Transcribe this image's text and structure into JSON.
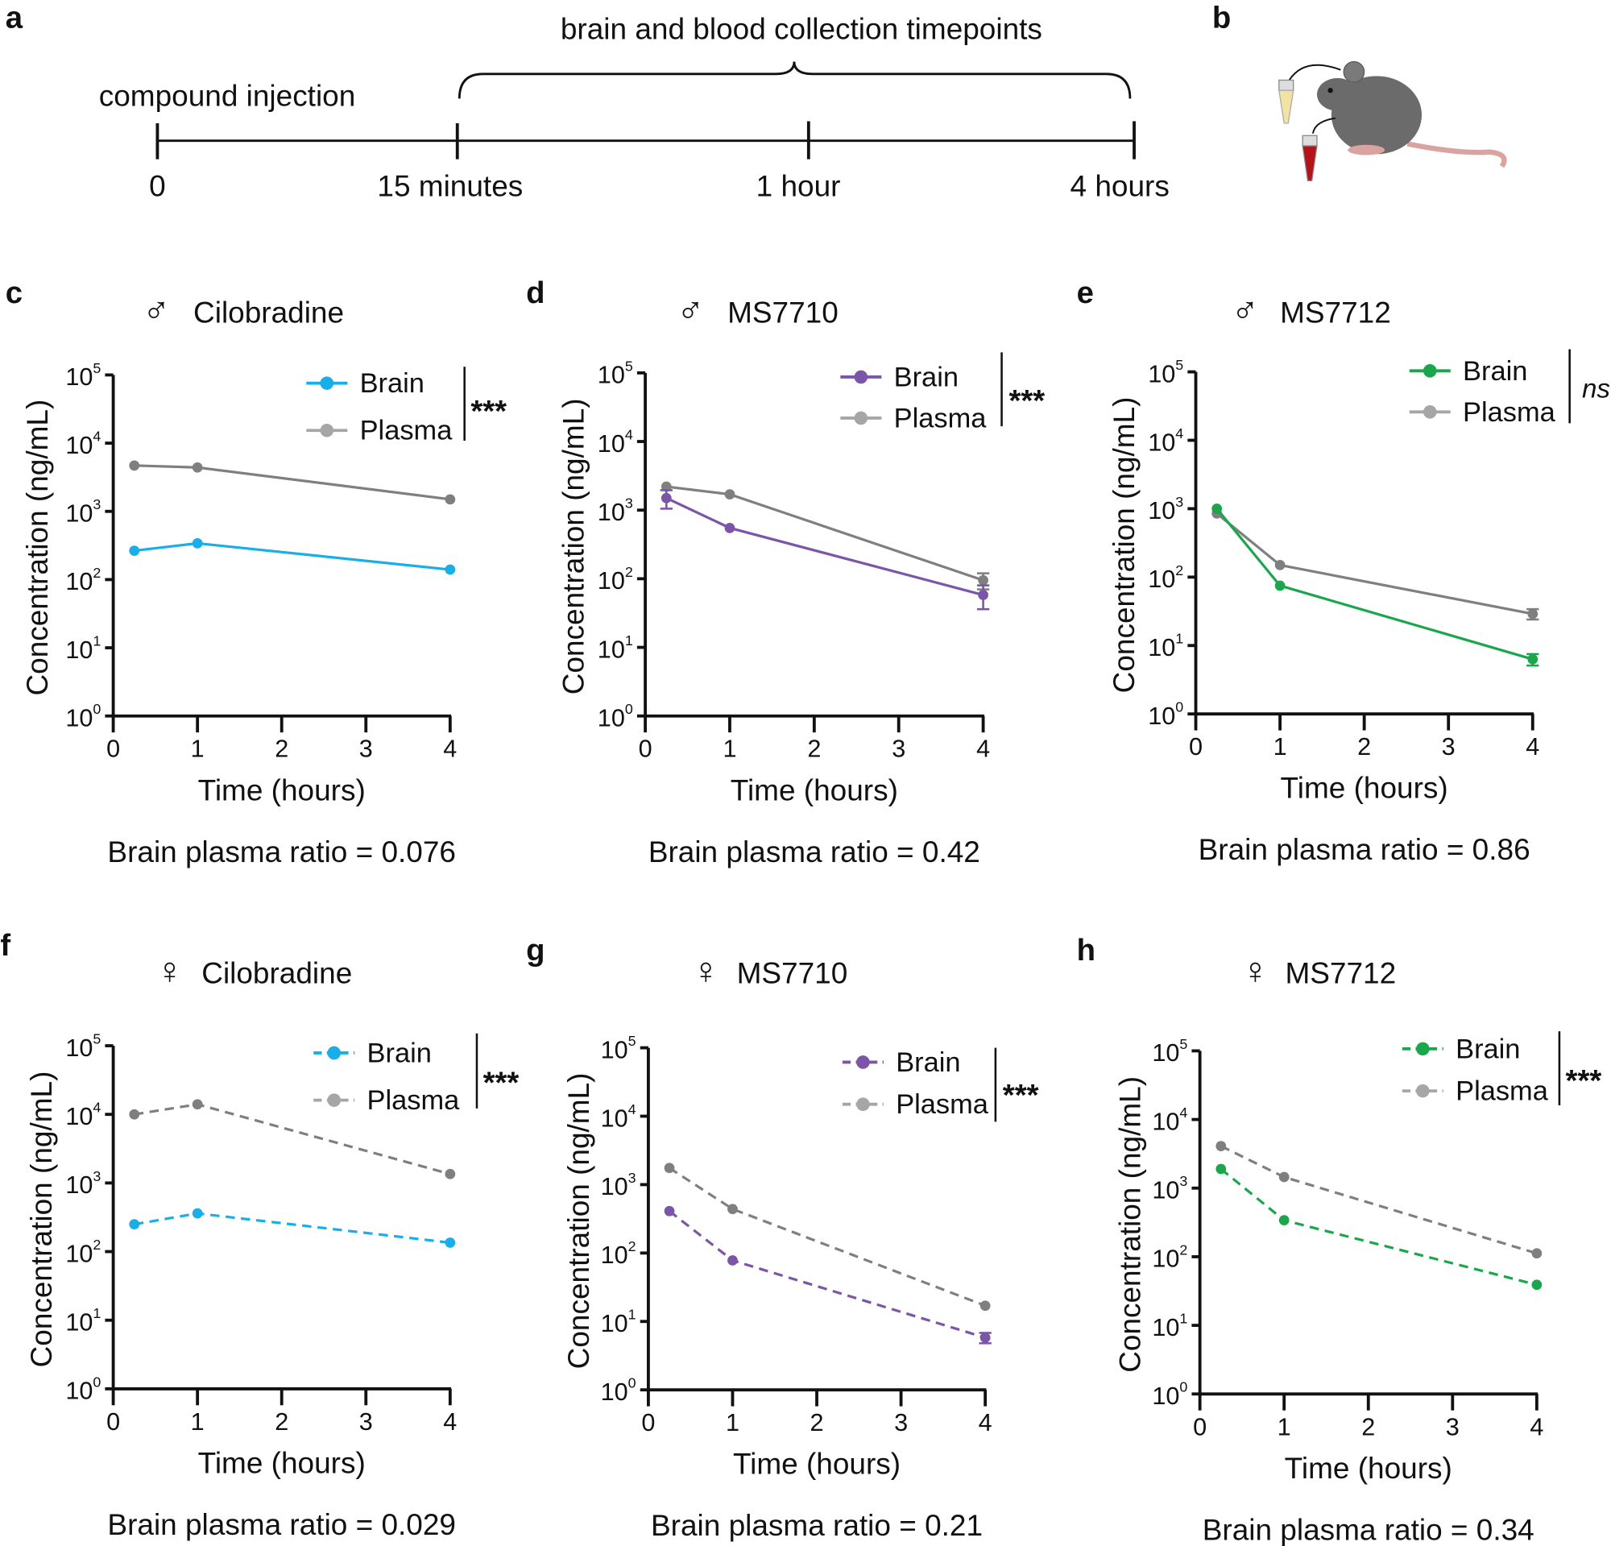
{
  "panel_a": {
    "label": "a",
    "title": "brain and blood collection timepoints",
    "injection_label": "compound injection",
    "timepoints": [
      "0",
      "15 minutes",
      "1 hour",
      "4 hours"
    ]
  },
  "panel_b": {
    "label": "b",
    "illustration": "mouse-with-brain-and-blood-tubes"
  },
  "colors": {
    "cilobradine": "#1aaee8",
    "ms7710": "#7b55a8",
    "ms7712": "#1ba64b",
    "plasma_line": "#7f7f7f",
    "plasma_legend": "#a6a6a6"
  },
  "chart_data": [
    {
      "panel": "c",
      "type": "line",
      "sex": "♂",
      "title": "Cilobradine",
      "color_key": "cilobradine",
      "dashed": false,
      "xlabel": "Time (hours)",
      "ylabel": "Concentration (ng/mL)",
      "xlim": [
        0,
        4
      ],
      "ylim": [
        1,
        100000
      ],
      "yscale": "log",
      "xticks": [
        "0",
        "1",
        "2",
        "3",
        "4"
      ],
      "yticks": [
        "10^0",
        "10^1",
        "10^2",
        "10^3",
        "10^4",
        "10^5"
      ],
      "legend_placement": "top-right",
      "significance": "***",
      "ratio": "Brain plasma ratio = 0.076",
      "series": [
        {
          "name": "Brain",
          "x": [
            0.25,
            1,
            4
          ],
          "y": [
            265,
            340,
            140
          ],
          "err": [
            0,
            0,
            0
          ]
        },
        {
          "name": "Plasma",
          "x": [
            0.25,
            1,
            4
          ],
          "y": [
            4700,
            4400,
            1500
          ],
          "err": [
            0,
            0,
            0
          ]
        }
      ]
    },
    {
      "panel": "d",
      "type": "line",
      "sex": "♂",
      "title": "MS7710",
      "color_key": "ms7710",
      "dashed": false,
      "xlabel": "Time (hours)",
      "ylabel": "Concentration (ng/mL)",
      "xlim": [
        0,
        4
      ],
      "ylim": [
        1,
        100000
      ],
      "yscale": "log",
      "xticks": [
        "0",
        "1",
        "2",
        "3",
        "4"
      ],
      "yticks": [
        "10^0",
        "10^1",
        "10^2",
        "10^3",
        "10^4",
        "10^5"
      ],
      "legend_placement": "top-right",
      "significance": "***",
      "ratio": "Brain plasma ratio = 0.42",
      "series": [
        {
          "name": "Brain",
          "x": [
            0.25,
            1,
            4
          ],
          "y": [
            1500,
            550,
            58
          ],
          "err": [
            450,
            0,
            22
          ]
        },
        {
          "name": "Plasma",
          "x": [
            0.25,
            1,
            4
          ],
          "y": [
            2200,
            1700,
            95
          ],
          "err": [
            0,
            0,
            25
          ]
        }
      ]
    },
    {
      "panel": "e",
      "type": "line",
      "sex": "♂",
      "title": "MS7712",
      "color_key": "ms7712",
      "dashed": false,
      "xlabel": "Time (hours)",
      "ylabel": "Concentration (ng/mL)",
      "xlim": [
        0,
        4
      ],
      "ylim": [
        1,
        100000
      ],
      "yscale": "log",
      "xticks": [
        "0",
        "1",
        "2",
        "3",
        "4"
      ],
      "yticks": [
        "10^0",
        "10^1",
        "10^2",
        "10^3",
        "10^4",
        "10^5"
      ],
      "legend_placement": "top-right",
      "significance": "ns",
      "ratio": "Brain plasma ratio = 0.86",
      "series": [
        {
          "name": "Brain",
          "x": [
            0.25,
            1,
            4
          ],
          "y": [
            1000,
            75,
            6.3
          ],
          "err": [
            0,
            0,
            1.2
          ]
        },
        {
          "name": "Plasma",
          "x": [
            0.25,
            1,
            4
          ],
          "y": [
            850,
            150,
            29
          ],
          "err": [
            0,
            0,
            5
          ]
        }
      ]
    },
    {
      "panel": "f",
      "type": "line",
      "sex": "♀",
      "title": "Cilobradine",
      "color_key": "cilobradine",
      "dashed": true,
      "xlabel": "Time (hours)",
      "ylabel": "Concentration (ng/mL)",
      "xlim": [
        0,
        4
      ],
      "ylim": [
        1,
        100000
      ],
      "yscale": "log",
      "xticks": [
        "0",
        "1",
        "2",
        "3",
        "4"
      ],
      "yticks": [
        "10^0",
        "10^1",
        "10^2",
        "10^3",
        "10^4",
        "10^5"
      ],
      "legend_placement": "top-right",
      "significance": "***",
      "ratio": "Brain plasma ratio = 0.029",
      "series": [
        {
          "name": "Brain",
          "x": [
            0.25,
            1,
            4
          ],
          "y": [
            250,
            360,
            135
          ],
          "err": [
            0,
            0,
            0
          ]
        },
        {
          "name": "Plasma",
          "x": [
            0.25,
            1,
            4
          ],
          "y": [
            10000,
            14000,
            1350
          ],
          "err": [
            0,
            0,
            0
          ]
        }
      ]
    },
    {
      "panel": "g",
      "type": "line",
      "sex": "♀",
      "title": "MS7710",
      "color_key": "ms7710",
      "dashed": true,
      "xlabel": "Time (hours)",
      "ylabel": "Concentration (ng/mL)",
      "xlim": [
        0,
        4
      ],
      "ylim": [
        1,
        100000
      ],
      "yscale": "log",
      "xticks": [
        "0",
        "1",
        "2",
        "3",
        "4"
      ],
      "yticks": [
        "10^0",
        "10^1",
        "10^2",
        "10^3",
        "10^4",
        "10^5"
      ],
      "legend_placement": "top-right",
      "significance": "***",
      "ratio": "Brain plasma ratio = 0.21",
      "series": [
        {
          "name": "Brain",
          "x": [
            0.25,
            1,
            4
          ],
          "y": [
            410,
            78,
            5.8
          ],
          "err": [
            0,
            0,
            1
          ]
        },
        {
          "name": "Plasma",
          "x": [
            0.25,
            1,
            4
          ],
          "y": [
            1750,
            440,
            17
          ],
          "err": [
            0,
            0,
            0
          ]
        }
      ]
    },
    {
      "panel": "h",
      "type": "line",
      "sex": "♀",
      "title": "MS7712",
      "color_key": "ms7712",
      "dashed": true,
      "xlabel": "Time (hours)",
      "ylabel": "Concentration (ng/mL)",
      "xlim": [
        0,
        4
      ],
      "ylim": [
        1,
        100000
      ],
      "yscale": "log",
      "xticks": [
        "0",
        "1",
        "2",
        "3",
        "4"
      ],
      "yticks": [
        "10^0",
        "10^1",
        "10^2",
        "10^3",
        "10^4",
        "10^5"
      ],
      "legend_placement": "top-right",
      "significance": "***",
      "ratio": "Brain plasma ratio = 0.34",
      "series": [
        {
          "name": "Brain",
          "x": [
            0.25,
            1,
            4
          ],
          "y": [
            1900,
            340,
            39
          ],
          "err": [
            0,
            0,
            0
          ]
        },
        {
          "name": "Plasma",
          "x": [
            0.25,
            1,
            4
          ],
          "y": [
            4100,
            1450,
            112
          ],
          "err": [
            0,
            0,
            0
          ]
        }
      ]
    }
  ]
}
